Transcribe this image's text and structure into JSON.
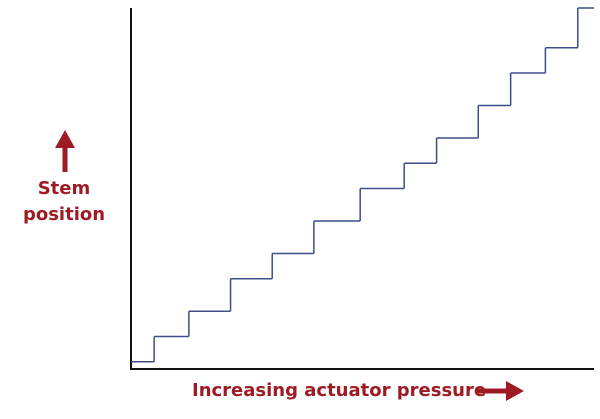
{
  "chart_data": {
    "type": "step",
    "x_label": "Increasing actuator pressure",
    "y_label": "Stem position",
    "x": [
      0,
      5,
      12.5,
      21.5,
      30.5,
      39.5,
      49.5,
      59,
      66,
      75,
      82,
      89.5,
      96.5
    ],
    "values": [
      2,
      9,
      16,
      25,
      32,
      41,
      50,
      57,
      64,
      73,
      82,
      89,
      100
    ],
    "color": "#3f4d88",
    "label_color": "#9e1b24",
    "xlim": [
      0,
      100
    ],
    "ylim": [
      0,
      100
    ]
  }
}
